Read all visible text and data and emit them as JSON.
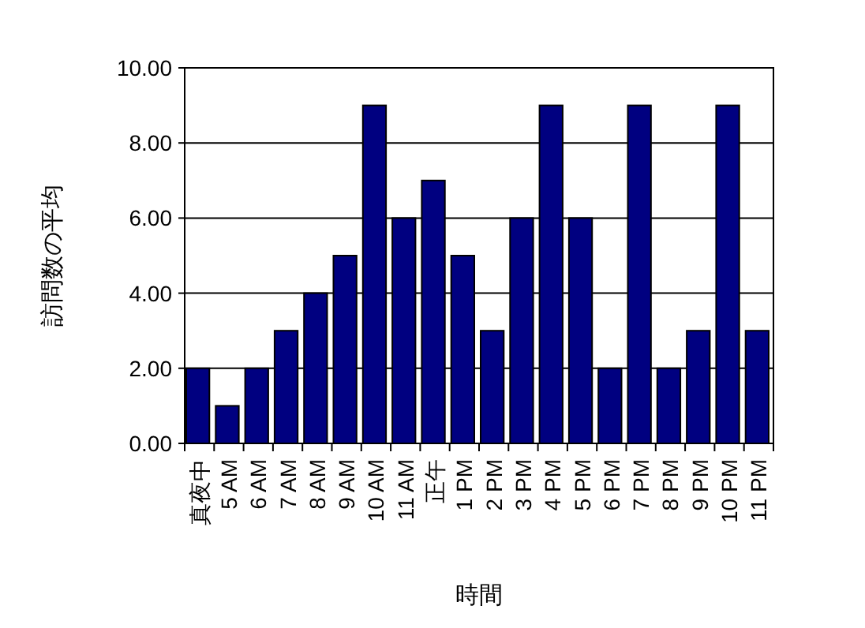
{
  "chart_data": {
    "type": "bar",
    "xlabel": "時間",
    "ylabel": "訪問数の平均",
    "categories": [
      "真夜中",
      "5 AM",
      "6 AM",
      "7 AM",
      "8 AM",
      "9 AM",
      "10 AM",
      "11 AM",
      "正午",
      "1 PM",
      "2 PM",
      "3 PM",
      "4 PM",
      "5 PM",
      "6 PM",
      "7 PM",
      "8 PM",
      "9 PM",
      "10 PM",
      "11 PM"
    ],
    "series": [
      {
        "color": "#000080",
        "values": [
          2,
          1,
          2,
          3,
          4,
          5,
          9,
          6,
          7,
          5,
          3,
          6,
          9,
          6,
          2,
          9,
          2,
          3,
          9,
          3
        ]
      }
    ],
    "ylim": [
      0,
      10
    ],
    "yticks": [
      {
        "value": 0,
        "label": "0.00"
      },
      {
        "value": 2,
        "label": "2.00"
      },
      {
        "value": 4,
        "label": "4.00"
      },
      {
        "value": 6,
        "label": "6.00"
      },
      {
        "value": 8,
        "label": "8.00"
      },
      {
        "value": 10,
        "label": "10.00"
      }
    ],
    "grid": "y"
  }
}
